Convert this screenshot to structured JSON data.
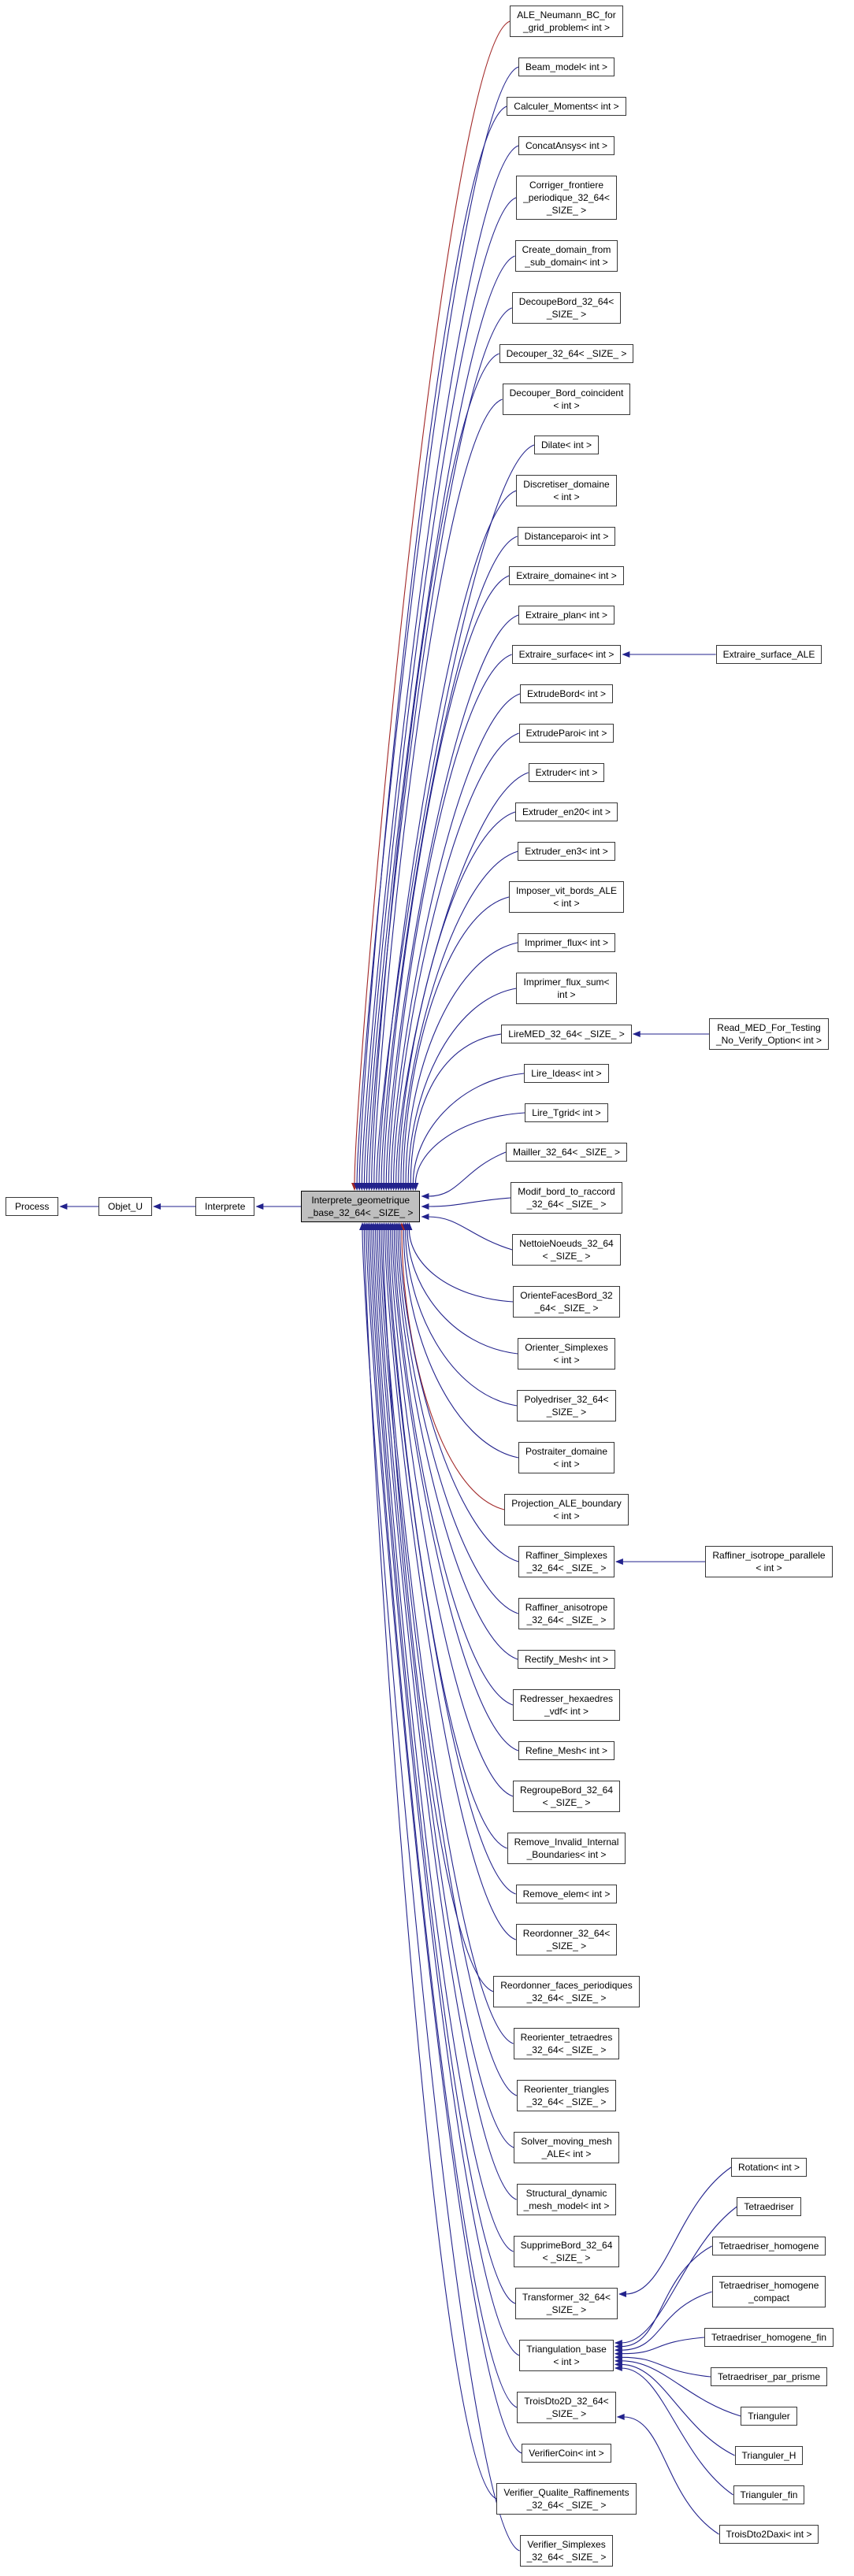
{
  "diagram": {
    "base_chain": [
      "Process",
      "Objet_U",
      "Interprete"
    ],
    "center": {
      "lines": [
        "Interprete_geometrique",
        "_base_32_64< _SIZE_ >"
      ]
    },
    "derived": [
      {
        "lines": [
          "ALE_Neumann_BC_for",
          "_grid_problem< int >"
        ],
        "edge": "red"
      },
      {
        "lines": [
          "Beam_model< int >"
        ],
        "edge": "blue"
      },
      {
        "lines": [
          "Calculer_Moments< int >"
        ],
        "edge": "blue"
      },
      {
        "lines": [
          "ConcatAnsys< int >"
        ],
        "edge": "blue"
      },
      {
        "lines": [
          "Corriger_frontiere",
          "_periodique_32_64<",
          "_SIZE_ >"
        ],
        "edge": "blue"
      },
      {
        "lines": [
          "Create_domain_from",
          "_sub_domain< int >"
        ],
        "edge": "blue"
      },
      {
        "lines": [
          "DecoupeBord_32_64<",
          "_SIZE_ >"
        ],
        "edge": "blue"
      },
      {
        "lines": [
          "Decouper_32_64< _SIZE_ >"
        ],
        "edge": "blue"
      },
      {
        "lines": [
          "Decouper_Bord_coincident",
          "< int >"
        ],
        "edge": "blue"
      },
      {
        "lines": [
          "Dilate< int >"
        ],
        "edge": "blue"
      },
      {
        "lines": [
          "Discretiser_domaine",
          "< int >"
        ],
        "edge": "blue"
      },
      {
        "lines": [
          "Distanceparoi< int >"
        ],
        "edge": "blue"
      },
      {
        "lines": [
          "Extraire_domaine< int >"
        ],
        "edge": "blue"
      },
      {
        "lines": [
          "Extraire_plan< int >"
        ],
        "edge": "blue"
      },
      {
        "lines": [
          "Extraire_surface< int >"
        ],
        "edge": "blue",
        "children": [
          {
            "lines": [
              "Extraire_surface_ALE"
            ]
          }
        ]
      },
      {
        "lines": [
          "ExtrudeBord< int >"
        ],
        "edge": "blue"
      },
      {
        "lines": [
          "ExtrudeParoi< int >"
        ],
        "edge": "blue"
      },
      {
        "lines": [
          "Extruder< int >"
        ],
        "edge": "blue"
      },
      {
        "lines": [
          "Extruder_en20< int >"
        ],
        "edge": "blue"
      },
      {
        "lines": [
          "Extruder_en3< int >"
        ],
        "edge": "blue"
      },
      {
        "lines": [
          "Imposer_vit_bords_ALE",
          "< int >"
        ],
        "edge": "blue"
      },
      {
        "lines": [
          "Imprimer_flux< int >"
        ],
        "edge": "blue"
      },
      {
        "lines": [
          "Imprimer_flux_sum<",
          "int >"
        ],
        "edge": "blue"
      },
      {
        "lines": [
          "LireMED_32_64< _SIZE_ >"
        ],
        "edge": "blue",
        "children": [
          {
            "lines": [
              "Read_MED_For_Testing",
              "_No_Verify_Option< int >"
            ]
          }
        ]
      },
      {
        "lines": [
          "Lire_Ideas< int >"
        ],
        "edge": "blue"
      },
      {
        "lines": [
          "Lire_Tgrid< int >"
        ],
        "edge": "blue"
      },
      {
        "lines": [
          "Mailler_32_64< _SIZE_ >"
        ],
        "edge": "blue"
      },
      {
        "lines": [
          "Modif_bord_to_raccord",
          "_32_64< _SIZE_ >"
        ],
        "edge": "blue"
      },
      {
        "lines": [
          "NettoieNoeuds_32_64",
          "< _SIZE_ >"
        ],
        "edge": "blue"
      },
      {
        "lines": [
          "OrienteFacesBord_32",
          "_64< _SIZE_ >"
        ],
        "edge": "blue"
      },
      {
        "lines": [
          "Orienter_Simplexes",
          "< int >"
        ],
        "edge": "blue"
      },
      {
        "lines": [
          "Polyedriser_32_64<",
          "_SIZE_ >"
        ],
        "edge": "blue"
      },
      {
        "lines": [
          "Postraiter_domaine",
          "< int >"
        ],
        "edge": "blue"
      },
      {
        "lines": [
          "Projection_ALE_boundary",
          "< int >"
        ],
        "edge": "red"
      },
      {
        "lines": [
          "Raffiner_Simplexes",
          "_32_64< _SIZE_ >"
        ],
        "edge": "blue",
        "children": [
          {
            "lines": [
              "Raffiner_isotrope_parallele",
              "< int >"
            ]
          }
        ]
      },
      {
        "lines": [
          "Raffiner_anisotrope",
          "_32_64< _SIZE_ >"
        ],
        "edge": "blue"
      },
      {
        "lines": [
          "Rectify_Mesh< int >"
        ],
        "edge": "blue"
      },
      {
        "lines": [
          "Redresser_hexaedres",
          "_vdf< int >"
        ],
        "edge": "blue"
      },
      {
        "lines": [
          "Refine_Mesh< int >"
        ],
        "edge": "blue"
      },
      {
        "lines": [
          "RegroupeBord_32_64",
          "< _SIZE_ >"
        ],
        "edge": "blue"
      },
      {
        "lines": [
          "Remove_Invalid_Internal",
          "_Boundaries< int >"
        ],
        "edge": "blue"
      },
      {
        "lines": [
          "Remove_elem< int >"
        ],
        "edge": "blue"
      },
      {
        "lines": [
          "Reordonner_32_64<",
          "_SIZE_ >"
        ],
        "edge": "blue"
      },
      {
        "lines": [
          "Reordonner_faces_periodiques",
          "_32_64< _SIZE_ >"
        ],
        "edge": "blue"
      },
      {
        "lines": [
          "Reorienter_tetraedres",
          "_32_64< _SIZE_ >"
        ],
        "edge": "blue"
      },
      {
        "lines": [
          "Reorienter_triangles",
          "_32_64< _SIZE_ >"
        ],
        "edge": "blue"
      },
      {
        "lines": [
          "Solver_moving_mesh",
          "_ALE< int >"
        ],
        "edge": "blue"
      },
      {
        "lines": [
          "Structural_dynamic",
          "_mesh_model< int >"
        ],
        "edge": "blue"
      },
      {
        "lines": [
          "SupprimeBord_32_64",
          "< _SIZE_ >"
        ],
        "edge": "blue"
      },
      {
        "lines": [
          "Transformer_32_64<",
          "_SIZE_ >"
        ],
        "edge": "blue",
        "children": [
          {
            "lines": [
              "Rotation< int >"
            ]
          }
        ]
      },
      {
        "lines": [
          "Triangulation_base",
          "< int >"
        ],
        "edge": "blue",
        "children": [
          {
            "lines": [
              "Tetraedriser"
            ]
          },
          {
            "lines": [
              "Tetraedriser_homogene"
            ]
          },
          {
            "lines": [
              "Tetraedriser_homogene",
              "_compact"
            ]
          },
          {
            "lines": [
              "Tetraedriser_homogene_fin"
            ]
          },
          {
            "lines": [
              "Tetraedriser_par_prisme"
            ]
          },
          {
            "lines": [
              "Trianguler"
            ]
          },
          {
            "lines": [
              "Trianguler_H"
            ]
          },
          {
            "lines": [
              "Trianguler_fin"
            ]
          }
        ]
      },
      {
        "lines": [
          "TroisDto2D_32_64<",
          "_SIZE_ >"
        ],
        "edge": "blue",
        "children": [
          {
            "lines": [
              "TroisDto2Daxi< int >"
            ]
          }
        ]
      },
      {
        "lines": [
          "VerifierCoin< int >"
        ],
        "edge": "blue"
      },
      {
        "lines": [
          "Verifier_Qualite_Raffinements",
          "_32_64< _SIZE_ >"
        ],
        "edge": "blue"
      },
      {
        "lines": [
          "Verifier_Simplexes",
          "_32_64< _SIZE_ >"
        ],
        "edge": "blue"
      }
    ]
  },
  "colors": {
    "background": "#ffffff",
    "node_fill": "#ffffff",
    "node_border": "#383838",
    "center_fill": "#bfbfbf",
    "center_border": "#000000",
    "edge_blue": "#22228c",
    "edge_red": "#a12626"
  }
}
